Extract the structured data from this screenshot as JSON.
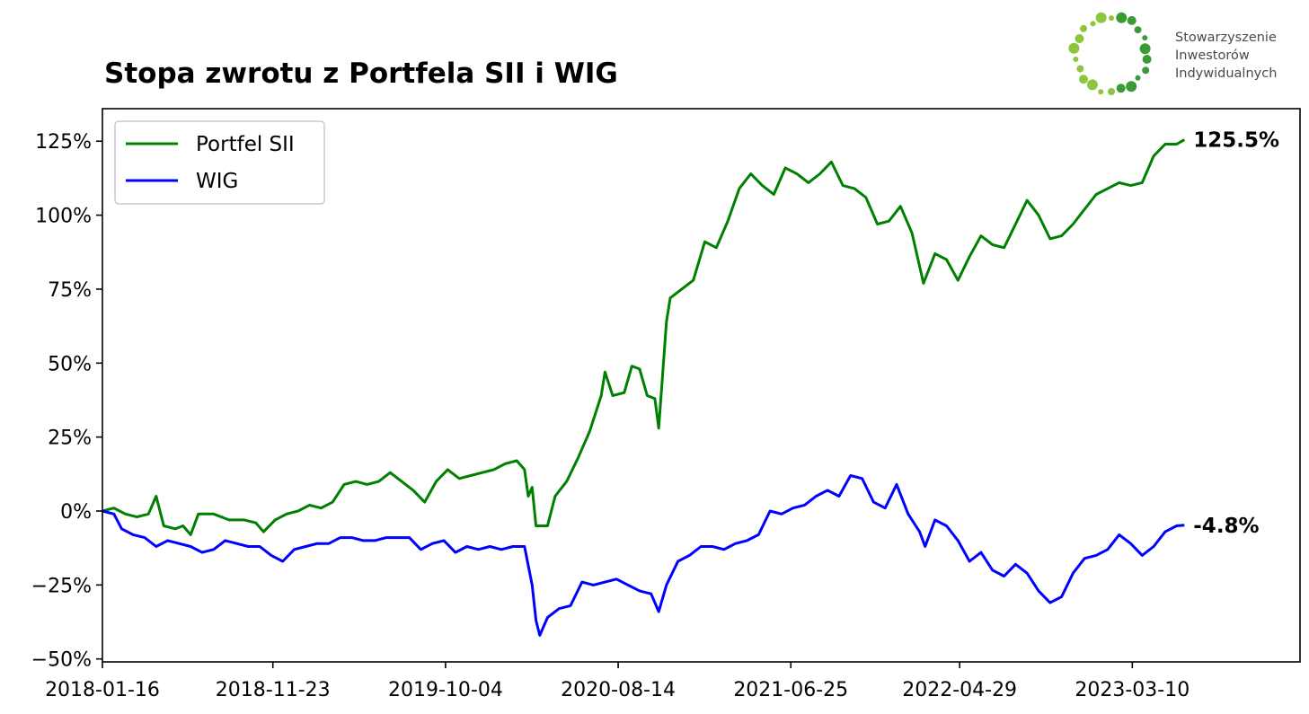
{
  "chart_data": {
    "type": "line",
    "title": "Stopa zwrotu z Portfela SII i WIG",
    "xlabel": "",
    "ylabel": "",
    "y_unit": "%",
    "ylim": [
      -51,
      136
    ],
    "xlim": [
      "2018-01-16",
      "2024-01-10"
    ],
    "grid": false,
    "legend_position": "top-left",
    "x_ticks": [
      "2018-01-16",
      "2018-11-23",
      "2019-10-04",
      "2020-08-14",
      "2021-06-25",
      "2022-04-29",
      "2023-03-10"
    ],
    "y_ticks": [
      125,
      100,
      75,
      50,
      25,
      0,
      -25,
      -50
    ],
    "y_tick_labels": [
      "125%",
      "100%",
      "75%",
      "50%",
      "25%",
      "0%",
      "−25%",
      "−50%"
    ],
    "series": [
      {
        "name": "Portfel SII",
        "color": "#008000",
        "end_label": "125.5%",
        "points": [
          [
            "2018-01-16",
            0
          ],
          [
            "2018-02-06",
            1
          ],
          [
            "2018-02-27",
            -1
          ],
          [
            "2018-03-20",
            -2
          ],
          [
            "2018-04-10",
            -1
          ],
          [
            "2018-04-24",
            5
          ],
          [
            "2018-05-08",
            -5
          ],
          [
            "2018-05-29",
            -6
          ],
          [
            "2018-06-12",
            -5
          ],
          [
            "2018-06-26",
            -8
          ],
          [
            "2018-07-10",
            -1
          ],
          [
            "2018-08-07",
            -1
          ],
          [
            "2018-09-04",
            -3
          ],
          [
            "2018-10-02",
            -3
          ],
          [
            "2018-10-23",
            -4
          ],
          [
            "2018-11-06",
            -7
          ],
          [
            "2018-11-27",
            -3
          ],
          [
            "2018-12-18",
            -1
          ],
          [
            "2019-01-08",
            0
          ],
          [
            "2019-01-29",
            2
          ],
          [
            "2019-02-19",
            1
          ],
          [
            "2019-03-12",
            3
          ],
          [
            "2019-04-02",
            9
          ],
          [
            "2019-04-23",
            10
          ],
          [
            "2019-05-14",
            9
          ],
          [
            "2019-06-04",
            10
          ],
          [
            "2019-06-25",
            13
          ],
          [
            "2019-07-16",
            10
          ],
          [
            "2019-08-06",
            7
          ],
          [
            "2019-08-27",
            3
          ],
          [
            "2019-09-17",
            10
          ],
          [
            "2019-10-08",
            14
          ],
          [
            "2019-10-29",
            11
          ],
          [
            "2019-11-19",
            12
          ],
          [
            "2019-12-10",
            13
          ],
          [
            "2019-12-31",
            14
          ],
          [
            "2020-01-21",
            16
          ],
          [
            "2020-02-11",
            17
          ],
          [
            "2020-02-25",
            14
          ],
          [
            "2020-03-03",
            5
          ],
          [
            "2020-03-10",
            8
          ],
          [
            "2020-03-17",
            -5
          ],
          [
            "2020-04-07",
            -5
          ],
          [
            "2020-04-21",
            5
          ],
          [
            "2020-05-12",
            10
          ],
          [
            "2020-06-02",
            18
          ],
          [
            "2020-06-23",
            27
          ],
          [
            "2020-07-14",
            39
          ],
          [
            "2020-07-21",
            47
          ],
          [
            "2020-08-04",
            39
          ],
          [
            "2020-08-25",
            40
          ],
          [
            "2020-09-08",
            49
          ],
          [
            "2020-09-22",
            48
          ],
          [
            "2020-10-06",
            39
          ],
          [
            "2020-10-20",
            38
          ],
          [
            "2020-10-27",
            28
          ],
          [
            "2020-11-10",
            64
          ],
          [
            "2020-11-17",
            72
          ],
          [
            "2020-12-08",
            75
          ],
          [
            "2020-12-29",
            78
          ],
          [
            "2021-01-19",
            91
          ],
          [
            "2021-02-09",
            89
          ],
          [
            "2021-03-02",
            98
          ],
          [
            "2021-03-23",
            109
          ],
          [
            "2021-04-13",
            114
          ],
          [
            "2021-05-04",
            110
          ],
          [
            "2021-05-25",
            107
          ],
          [
            "2021-06-15",
            116
          ],
          [
            "2021-07-06",
            114
          ],
          [
            "2021-07-27",
            111
          ],
          [
            "2021-08-17",
            114
          ],
          [
            "2021-09-07",
            118
          ],
          [
            "2021-09-28",
            110
          ],
          [
            "2021-10-19",
            109
          ],
          [
            "2021-11-09",
            106
          ],
          [
            "2021-11-30",
            97
          ],
          [
            "2021-12-21",
            98
          ],
          [
            "2022-01-11",
            103
          ],
          [
            "2022-02-01",
            94
          ],
          [
            "2022-02-22",
            77
          ],
          [
            "2022-03-15",
            87
          ],
          [
            "2022-04-05",
            85
          ],
          [
            "2022-04-26",
            78
          ],
          [
            "2022-05-17",
            86
          ],
          [
            "2022-06-07",
            93
          ],
          [
            "2022-06-28",
            90
          ],
          [
            "2022-07-19",
            89
          ],
          [
            "2022-08-09",
            97
          ],
          [
            "2022-08-30",
            105
          ],
          [
            "2022-09-20",
            100
          ],
          [
            "2022-10-11",
            92
          ],
          [
            "2022-11-01",
            93
          ],
          [
            "2022-11-22",
            97
          ],
          [
            "2022-12-13",
            102
          ],
          [
            "2023-01-03",
            107
          ],
          [
            "2023-01-24",
            109
          ],
          [
            "2023-02-14",
            111
          ],
          [
            "2023-03-07",
            110
          ],
          [
            "2023-03-28",
            111
          ],
          [
            "2023-04-18",
            120
          ],
          [
            "2023-05-09",
            124
          ],
          [
            "2023-05-30",
            124
          ],
          [
            "2023-06-13",
            125.5
          ]
        ]
      },
      {
        "name": "WIG",
        "color": "#0000ff",
        "end_label": "-4.8%",
        "points": [
          [
            "2018-01-16",
            0
          ],
          [
            "2018-02-06",
            -1
          ],
          [
            "2018-02-20",
            -6
          ],
          [
            "2018-03-13",
            -8
          ],
          [
            "2018-04-03",
            -9
          ],
          [
            "2018-04-24",
            -12
          ],
          [
            "2018-05-15",
            -10
          ],
          [
            "2018-06-05",
            -11
          ],
          [
            "2018-06-26",
            -12
          ],
          [
            "2018-07-17",
            -14
          ],
          [
            "2018-08-07",
            -13
          ],
          [
            "2018-08-28",
            -10
          ],
          [
            "2018-09-18",
            -11
          ],
          [
            "2018-10-09",
            -12
          ],
          [
            "2018-10-30",
            -12
          ],
          [
            "2018-11-20",
            -15
          ],
          [
            "2018-12-11",
            -17
          ],
          [
            "2019-01-01",
            -13
          ],
          [
            "2019-01-22",
            -12
          ],
          [
            "2019-02-12",
            -11
          ],
          [
            "2019-03-05",
            -11
          ],
          [
            "2019-03-26",
            -9
          ],
          [
            "2019-04-16",
            -9
          ],
          [
            "2019-05-07",
            -10
          ],
          [
            "2019-05-28",
            -10
          ],
          [
            "2019-06-18",
            -9
          ],
          [
            "2019-07-09",
            -9
          ],
          [
            "2019-07-30",
            -9
          ],
          [
            "2019-08-20",
            -13
          ],
          [
            "2019-09-10",
            -11
          ],
          [
            "2019-10-01",
            -10
          ],
          [
            "2019-10-22",
            -14
          ],
          [
            "2019-11-12",
            -12
          ],
          [
            "2019-12-03",
            -13
          ],
          [
            "2019-12-24",
            -12
          ],
          [
            "2020-01-14",
            -13
          ],
          [
            "2020-02-04",
            -12
          ],
          [
            "2020-02-25",
            -12
          ],
          [
            "2020-03-10",
            -25
          ],
          [
            "2020-03-17",
            -37
          ],
          [
            "2020-03-24",
            -42
          ],
          [
            "2020-04-07",
            -36
          ],
          [
            "2020-04-28",
            -33
          ],
          [
            "2020-05-19",
            -32
          ],
          [
            "2020-06-09",
            -24
          ],
          [
            "2020-06-30",
            -25
          ],
          [
            "2020-07-21",
            -24
          ],
          [
            "2020-08-11",
            -23
          ],
          [
            "2020-09-01",
            -25
          ],
          [
            "2020-09-22",
            -27
          ],
          [
            "2020-10-13",
            -28
          ],
          [
            "2020-10-27",
            -34
          ],
          [
            "2020-11-10",
            -25
          ],
          [
            "2020-12-01",
            -17
          ],
          [
            "2020-12-22",
            -15
          ],
          [
            "2021-01-12",
            -12
          ],
          [
            "2021-02-02",
            -12
          ],
          [
            "2021-02-23",
            -13
          ],
          [
            "2021-03-16",
            -11
          ],
          [
            "2021-04-06",
            -10
          ],
          [
            "2021-04-27",
            -8
          ],
          [
            "2021-05-18",
            0
          ],
          [
            "2021-06-08",
            -1
          ],
          [
            "2021-06-29",
            1
          ],
          [
            "2021-07-20",
            2
          ],
          [
            "2021-08-10",
            5
          ],
          [
            "2021-08-31",
            7
          ],
          [
            "2021-09-21",
            5
          ],
          [
            "2021-10-12",
            12
          ],
          [
            "2021-11-02",
            11
          ],
          [
            "2021-11-23",
            3
          ],
          [
            "2021-12-14",
            1
          ],
          [
            "2022-01-04",
            9
          ],
          [
            "2022-01-25",
            -1
          ],
          [
            "2022-02-15",
            -7
          ],
          [
            "2022-02-25",
            -12
          ],
          [
            "2022-03-15",
            -3
          ],
          [
            "2022-04-05",
            -5
          ],
          [
            "2022-04-26",
            -10
          ],
          [
            "2022-05-17",
            -17
          ],
          [
            "2022-06-07",
            -14
          ],
          [
            "2022-06-28",
            -20
          ],
          [
            "2022-07-19",
            -22
          ],
          [
            "2022-08-09",
            -18
          ],
          [
            "2022-08-30",
            -21
          ],
          [
            "2022-09-20",
            -27
          ],
          [
            "2022-10-11",
            -31
          ],
          [
            "2022-11-01",
            -29
          ],
          [
            "2022-11-22",
            -21
          ],
          [
            "2022-12-13",
            -16
          ],
          [
            "2023-01-03",
            -15
          ],
          [
            "2023-01-24",
            -13
          ],
          [
            "2023-02-14",
            -8
          ],
          [
            "2023-03-07",
            -11
          ],
          [
            "2023-03-28",
            -15
          ],
          [
            "2023-04-18",
            -12
          ],
          [
            "2023-05-09",
            -7
          ],
          [
            "2023-05-30",
            -5
          ],
          [
            "2023-06-13",
            -4.8
          ]
        ]
      }
    ]
  },
  "logo": {
    "line1": "Stowarzyszenie",
    "line2": "Inwestorów",
    "line3": "Indywidualnych",
    "colors": [
      "#8cc63f",
      "#3a9b35"
    ]
  }
}
